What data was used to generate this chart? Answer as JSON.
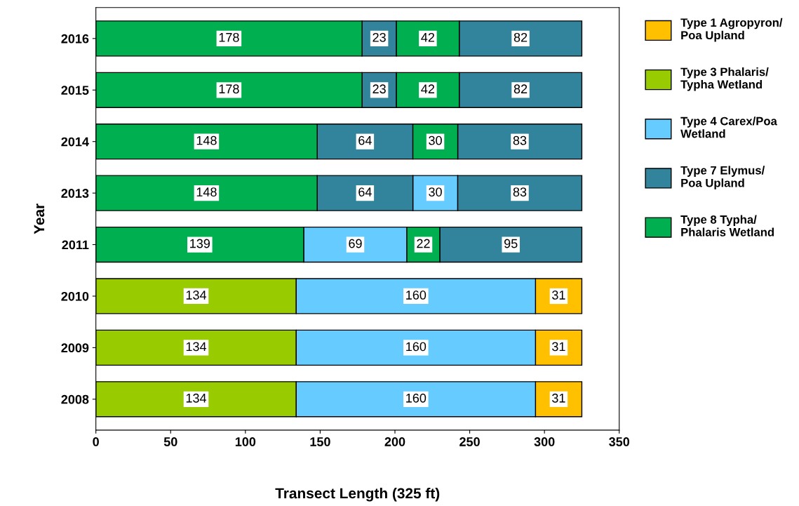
{
  "chart_data": {
    "type": "bar",
    "orientation": "horizontal",
    "xlabel": "Transect Length (325 ft)",
    "ylabel": "Year",
    "categories": [
      "2016",
      "2015",
      "2014",
      "2013",
      "2011",
      "2010",
      "2009",
      "2008"
    ],
    "series": [
      {
        "name": "Type 1 Agropyron/ Poa Upland",
        "color": "#ffc000",
        "values": [
          null,
          null,
          null,
          null,
          null,
          31,
          31,
          31
        ],
        "base": [
          null,
          null,
          null,
          null,
          null,
          294,
          294,
          294
        ]
      },
      {
        "name": "Type 3 Phalaris/ Typha Wetland",
        "color": "#99cc00",
        "values": [
          null,
          null,
          null,
          null,
          null,
          134,
          134,
          134
        ],
        "base": [
          null,
          null,
          null,
          null,
          null,
          0,
          0,
          0
        ]
      },
      {
        "name": "Type 4 Carex/Poa Wetland",
        "color": "#66ccff",
        "values": [
          null,
          null,
          null,
          30,
          69,
          160,
          160,
          160
        ],
        "base": [
          null,
          null,
          null,
          212,
          139,
          134,
          134,
          134
        ]
      },
      {
        "name": "Type 7 Elymus/ Poa Upland",
        "color": "#31849b",
        "values": [
          23,
          23,
          64,
          64,
          95,
          null,
          null,
          null
        ],
        "base": [
          178,
          178,
          148,
          148,
          230,
          null,
          null,
          null
        ]
      },
      {
        "name": "Type 8 Typha/ Phalaris Wetland",
        "color": "#00b050",
        "values": [
          178,
          178,
          148,
          148,
          139,
          null,
          null,
          null
        ],
        "base": [
          0,
          0,
          0,
          0,
          0,
          null,
          null,
          null
        ]
      },
      {
        "color": "#31849b",
        "values": [
          82,
          82,
          83,
          83,
          null,
          null,
          null,
          null
        ],
        "base": [
          243,
          243,
          242,
          242,
          null,
          null,
          null,
          null
        ]
      },
      {
        "color": "#00b050",
        "values": [
          42,
          42,
          30,
          null,
          22,
          null,
          null,
          null
        ],
        "base": [
          201,
          201,
          212,
          null,
          208,
          null,
          null,
          null
        ]
      }
    ],
    "xlim": [
      0,
      350
    ],
    "xticks": [
      0,
      50,
      100,
      150,
      200,
      250,
      300,
      350
    ],
    "data_labels": true,
    "grid": false,
    "legend": "right"
  }
}
